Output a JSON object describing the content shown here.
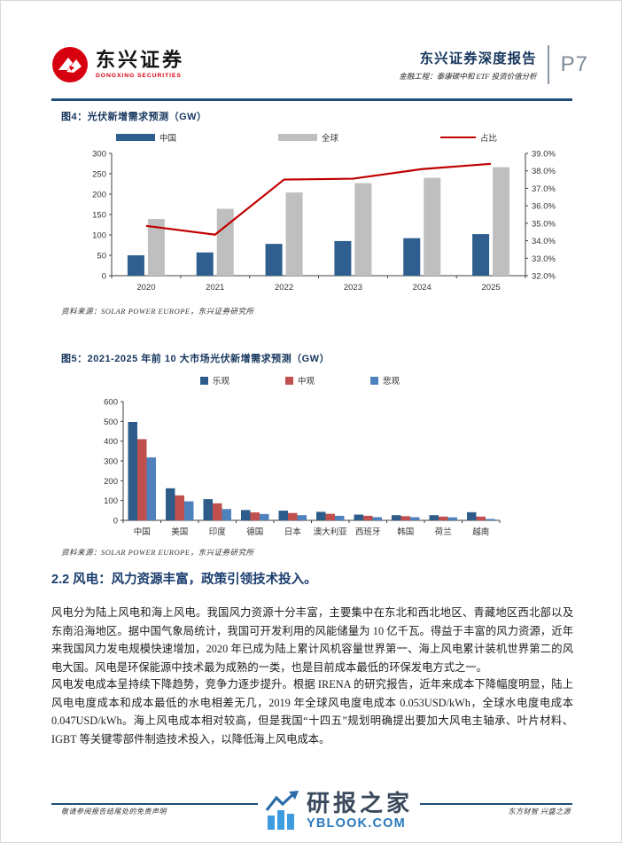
{
  "header": {
    "brand": {
      "name_cn": "东兴证券",
      "name_en": "DONGXING SECURITIES"
    },
    "report_type": "东兴证券深度报告",
    "report_subtitle": "金融工程：泰康碳中和 ETF 投资价值分析",
    "page_number": "P7"
  },
  "figure4": {
    "title": "图4：光伏新增需求预测（GW）",
    "source": "资料来源：SOLAR POWER EUROPE，东兴证券研究所"
  },
  "figure5": {
    "title": "图5：2021-2025 年前 10 大市场光伏新增需求预测（GW）",
    "source": "资料来源：SOLAR POWER EUROPE，东兴证券研究所"
  },
  "chart_data": [
    {
      "type": "bar",
      "subtype": "combo-bar-line",
      "title": "光伏新增需求预测（GW）",
      "categories": [
        "2020",
        "2021",
        "2022",
        "2023",
        "2024",
        "2025"
      ],
      "series": [
        {
          "name": "中国",
          "kind": "bar",
          "axis": "left",
          "color": "#2e5f8f",
          "values": [
            50,
            57,
            78,
            85,
            92,
            102
          ]
        },
        {
          "name": "全球",
          "kind": "bar",
          "axis": "left",
          "color": "#bfbfbf",
          "values": [
            139,
            164,
            204,
            227,
            240,
            266
          ]
        },
        {
          "name": "占比",
          "kind": "line",
          "axis": "right",
          "color": "#c00000",
          "values": [
            34.85,
            34.35,
            37.5,
            37.55,
            38.1,
            38.4
          ]
        }
      ],
      "left_axis": {
        "min": 0,
        "max": 300,
        "step": 50
      },
      "right_axis": {
        "min": 32,
        "max": 39,
        "step": 1,
        "unit": "%"
      },
      "grid": false,
      "legend_position": "top"
    },
    {
      "type": "bar",
      "subtype": "grouped-bar",
      "title": "2021-2025 年前 10 大市场光伏新增需求预测（GW）",
      "categories": [
        "中国",
        "美国",
        "印度",
        "德国",
        "日本",
        "澳大利亚",
        "西班牙",
        "韩国",
        "荷兰",
        "越南"
      ],
      "series": [
        {
          "name": "乐观",
          "kind": "bar",
          "color": "#2e5c8a",
          "values": [
            497,
            162,
            107,
            52,
            49,
            43,
            29,
            26,
            26,
            41
          ]
        },
        {
          "name": "中观",
          "kind": "bar",
          "color": "#c0504d",
          "values": [
            410,
            126,
            86,
            40,
            37,
            33,
            23,
            21,
            19,
            19
          ]
        },
        {
          "name": "悲观",
          "kind": "bar",
          "color": "#4f81bd",
          "values": [
            318,
            96,
            57,
            32,
            26,
            23,
            16,
            16,
            15,
            7
          ]
        }
      ],
      "left_axis": {
        "min": 0,
        "max": 600,
        "step": 100
      },
      "grid": false,
      "legend_position": "top"
    }
  ],
  "section": {
    "heading": "2.2 风电：风力资源丰富，政策引领技术投入。",
    "paragraphs": [
      "风电分为陆上风电和海上风电。我国风力资源十分丰富，主要集中在东北和西北地区、青藏地区西北部以及东南沿海地区。据中国气象局统计，我国可开发利用的风能储量为 10 亿千瓦。得益于丰富的风力资源，近年来我国风力发电规模快速增加，2020 年已成为陆上累计风机容量世界第一、海上风电累计装机世界第二的风电大国。风电是环保能源中技术最为成熟的一类，也是目前成本最低的环保发电方式之一。",
      "风电发电成本呈持续下降趋势，竞争力逐步提升。根据 IRENA 的研究报告，近年来成本下降幅度明显，陆上风电电度成本和成本最低的水电相差无几，2019 年全球风电度电成本 0.053USD/kWh，全球水电度电成本 0.047USD/kWh。海上风电成本相对较高，但是我国“十四五”规划明确提出要加大风电主轴承、叶片材料、IGBT 等关键零部件制造技术投入，以降低海上风电成本。"
    ]
  },
  "footer": {
    "left_note": "敬请参阅报告结尾处的免责声明",
    "right_note": "东方财智 兴盛之源",
    "logo_cn": "研报之家",
    "logo_domain": "YBLOOK.COM"
  },
  "colors": {
    "brand_red": "#d7000f",
    "navy": "#17375e",
    "rule_blue": "#1f4e79",
    "page_num_gray": "#7e8b98",
    "axis_gray": "#404040",
    "logo_bar_blue": "#3e9bde",
    "logo_domain_blue": "#2878be"
  }
}
